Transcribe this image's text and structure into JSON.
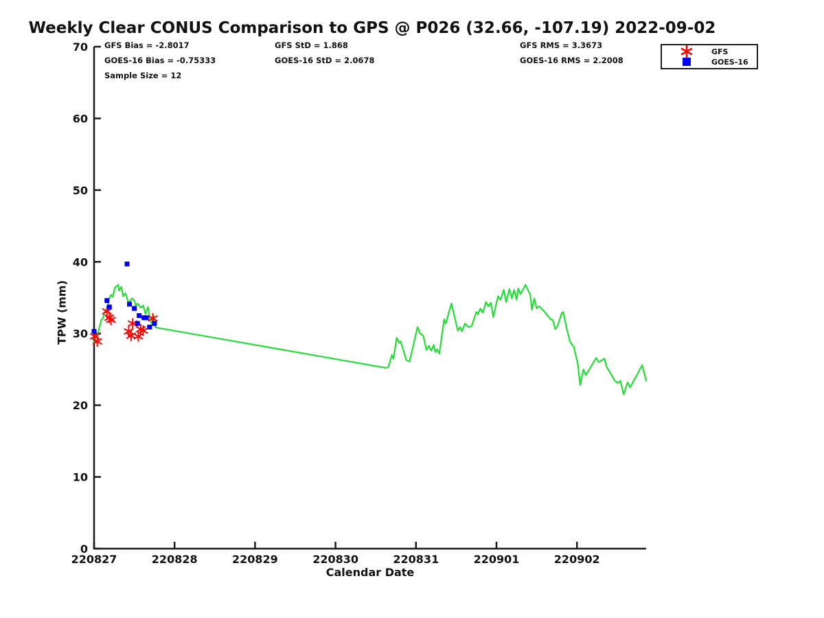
{
  "chart_data": {
    "type": "line",
    "title": "Weekly Clear CONUS Comparison to GPS @ P026 (32.66, -107.19) 2022-09-02",
    "xlabel": "Calendar Date",
    "ylabel": "TPW (mm)",
    "grid": false,
    "ylim": [
      0,
      70
    ],
    "y_ticks": [
      0,
      10,
      20,
      30,
      40,
      50,
      60,
      70
    ],
    "xlim_days": [
      0,
      6.86
    ],
    "x_ticks": {
      "positions_days": [
        0,
        1,
        2,
        3,
        4,
        5,
        6
      ],
      "labels": [
        "220827",
        "220828",
        "220829",
        "220830",
        "220831",
        "220901",
        "220902"
      ]
    },
    "stats": {
      "col1": [
        "GFS Bias = -2.8017",
        "GOES-16 Bias = -0.75333",
        "Sample Size = 12"
      ],
      "col2": [
        "GFS StD = 1.868",
        "GOES-16 StD = 2.0678"
      ],
      "col3": [
        "GFS RMS = 3.3673",
        "GOES-16 RMS = 2.2008"
      ]
    },
    "legend": {
      "position": "top-right",
      "entries": [
        {
          "label": "GFS",
          "marker": "asterisk",
          "color": "#ff0000"
        },
        {
          "label": "GOES-16",
          "marker": "square",
          "color": "#0000ee"
        }
      ]
    },
    "axis_color": "#1a1a1a",
    "series": [
      {
        "name": "GPS",
        "type": "line",
        "color": "#22dd33",
        "points": [
          [
            0.0,
            28.6
          ],
          [
            0.01,
            29.8
          ],
          [
            0.03,
            29.6
          ],
          [
            0.05,
            30.1
          ],
          [
            0.07,
            31.0
          ],
          [
            0.09,
            31.9
          ],
          [
            0.11,
            32.1
          ],
          [
            0.13,
            33.0
          ],
          [
            0.15,
            33.2
          ],
          [
            0.16,
            32.9
          ],
          [
            0.18,
            34.7
          ],
          [
            0.21,
            35.4
          ],
          [
            0.23,
            35.1
          ],
          [
            0.26,
            36.4
          ],
          [
            0.3,
            36.8
          ],
          [
            0.31,
            36.0
          ],
          [
            0.34,
            36.5
          ],
          [
            0.36,
            35.2
          ],
          [
            0.39,
            35.6
          ],
          [
            0.43,
            34.2
          ],
          [
            0.47,
            34.9
          ],
          [
            0.5,
            34.6
          ],
          [
            0.52,
            33.9
          ],
          [
            0.54,
            34.2
          ],
          [
            0.58,
            33.6
          ],
          [
            0.61,
            33.9
          ],
          [
            0.64,
            32.7
          ],
          [
            0.67,
            33.7
          ],
          [
            0.69,
            32.2
          ],
          [
            0.72,
            31.3
          ],
          [
            0.74,
            32.5
          ],
          [
            0.76,
            30.9
          ],
          [
            0.79,
            30.8
          ],
          [
            3.63,
            25.2
          ],
          [
            3.66,
            25.4
          ],
          [
            3.7,
            27.0
          ],
          [
            3.72,
            26.5
          ],
          [
            3.76,
            29.4
          ],
          [
            3.79,
            28.7
          ],
          [
            3.81,
            28.9
          ],
          [
            3.88,
            26.3
          ],
          [
            3.92,
            26.1
          ],
          [
            4.02,
            30.9
          ],
          [
            4.05,
            30.0
          ],
          [
            4.09,
            29.7
          ],
          [
            4.13,
            27.7
          ],
          [
            4.16,
            28.3
          ],
          [
            4.19,
            27.6
          ],
          [
            4.22,
            28.4
          ],
          [
            4.24,
            27.4
          ],
          [
            4.26,
            27.8
          ],
          [
            4.29,
            27.2
          ],
          [
            4.35,
            32.0
          ],
          [
            4.37,
            31.4
          ],
          [
            4.44,
            34.2
          ],
          [
            4.52,
            30.4
          ],
          [
            4.55,
            30.9
          ],
          [
            4.57,
            30.3
          ],
          [
            4.61,
            31.4
          ],
          [
            4.65,
            30.9
          ],
          [
            4.69,
            31.0
          ],
          [
            4.75,
            33.0
          ],
          [
            4.77,
            32.7
          ],
          [
            4.8,
            33.5
          ],
          [
            4.83,
            32.9
          ],
          [
            4.87,
            34.4
          ],
          [
            4.9,
            33.8
          ],
          [
            4.93,
            34.3
          ],
          [
            4.96,
            32.3
          ],
          [
            5.02,
            35.2
          ],
          [
            5.05,
            34.7
          ],
          [
            5.09,
            36.1
          ],
          [
            5.12,
            34.4
          ],
          [
            5.16,
            36.2
          ],
          [
            5.19,
            34.9
          ],
          [
            5.22,
            36.1
          ],
          [
            5.25,
            34.7
          ],
          [
            5.27,
            36.3
          ],
          [
            5.3,
            35.5
          ],
          [
            5.36,
            36.8
          ],
          [
            5.42,
            35.4
          ],
          [
            5.44,
            33.3
          ],
          [
            5.47,
            34.9
          ],
          [
            5.5,
            33.5
          ],
          [
            5.53,
            33.8
          ],
          [
            5.6,
            33.0
          ],
          [
            5.67,
            32.0
          ],
          [
            5.7,
            31.9
          ],
          [
            5.73,
            30.6
          ],
          [
            5.76,
            31.1
          ],
          [
            5.81,
            32.8
          ],
          [
            5.83,
            33.0
          ],
          [
            5.87,
            30.8
          ],
          [
            5.91,
            29.0
          ],
          [
            5.94,
            28.4
          ],
          [
            5.96,
            28.2
          ],
          [
            6.01,
            25.8
          ],
          [
            6.04,
            22.8
          ],
          [
            6.08,
            25.0
          ],
          [
            6.11,
            24.2
          ],
          [
            6.24,
            26.6
          ],
          [
            6.27,
            26.0
          ],
          [
            6.34,
            26.5
          ],
          [
            6.37,
            25.3
          ],
          [
            6.41,
            24.6
          ],
          [
            6.47,
            23.4
          ],
          [
            6.51,
            23.1
          ],
          [
            6.54,
            23.4
          ],
          [
            6.58,
            21.5
          ],
          [
            6.63,
            23.2
          ],
          [
            6.66,
            22.5
          ],
          [
            6.74,
            24.1
          ],
          [
            6.81,
            25.6
          ],
          [
            6.86,
            23.4
          ]
        ]
      },
      {
        "name": "GFS",
        "type": "scatter",
        "marker": "asterisk",
        "color": "#ff0000",
        "points": [
          [
            0.01,
            29.6
          ],
          [
            0.04,
            28.9
          ],
          [
            0.16,
            33.1
          ],
          [
            0.19,
            32.2
          ],
          [
            0.21,
            31.9
          ],
          [
            0.43,
            30.3
          ],
          [
            0.46,
            29.7
          ],
          [
            0.48,
            31.4
          ],
          [
            0.55,
            29.6
          ],
          [
            0.58,
            30.6
          ],
          [
            0.61,
            30.4
          ],
          [
            0.73,
            32.1
          ]
        ]
      },
      {
        "name": "GOES-16",
        "type": "scatter",
        "marker": "square",
        "color": "#0000ee",
        "points": [
          [
            0.0,
            30.3
          ],
          [
            0.16,
            34.6
          ],
          [
            0.19,
            33.7
          ],
          [
            0.41,
            39.7
          ],
          [
            0.44,
            34.1
          ],
          [
            0.5,
            33.5
          ],
          [
            0.54,
            31.4
          ],
          [
            0.56,
            32.5
          ],
          [
            0.62,
            32.2
          ],
          [
            0.65,
            32.2
          ],
          [
            0.69,
            30.9
          ],
          [
            0.75,
            31.4
          ]
        ]
      }
    ]
  }
}
